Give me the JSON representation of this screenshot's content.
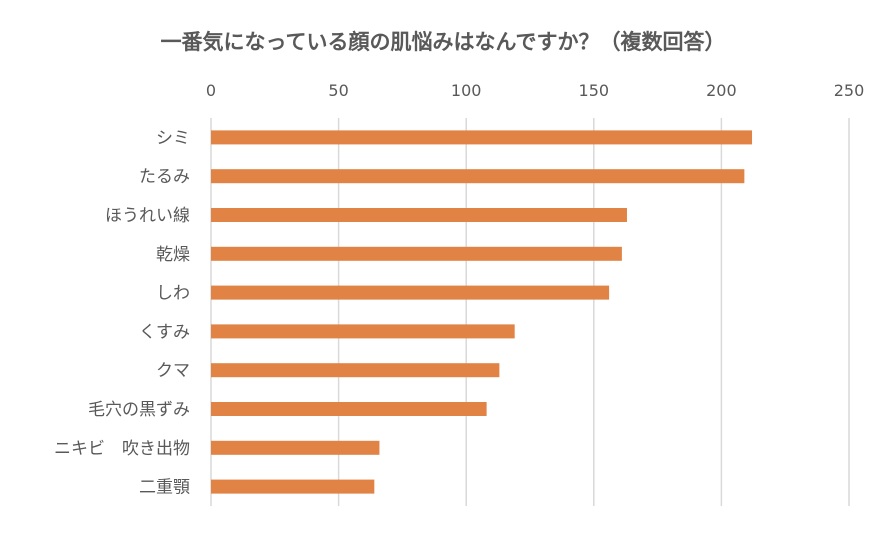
{
  "chart_data": {
    "type": "bar",
    "orientation": "horizontal",
    "title": "一番気になっている顔の肌悩みはなんですか？（複数回答）",
    "categories": [
      "シミ",
      "たるみ",
      "ほうれい線",
      "乾燥",
      "しわ",
      "くすみ",
      "クマ",
      "毛穴の黒ずみ",
      "ニキビ　吹き出物",
      "二重顎"
    ],
    "values": [
      212,
      209,
      163,
      161,
      156,
      119,
      113,
      108,
      66,
      64
    ],
    "xlim": [
      0,
      250
    ],
    "xticks": [
      0,
      50,
      100,
      150,
      200,
      250
    ],
    "xlabel": "",
    "ylabel": "",
    "grid": true,
    "axis_position": "top",
    "bar_color": "#E08344",
    "grid_color": "#D9D9D9"
  }
}
